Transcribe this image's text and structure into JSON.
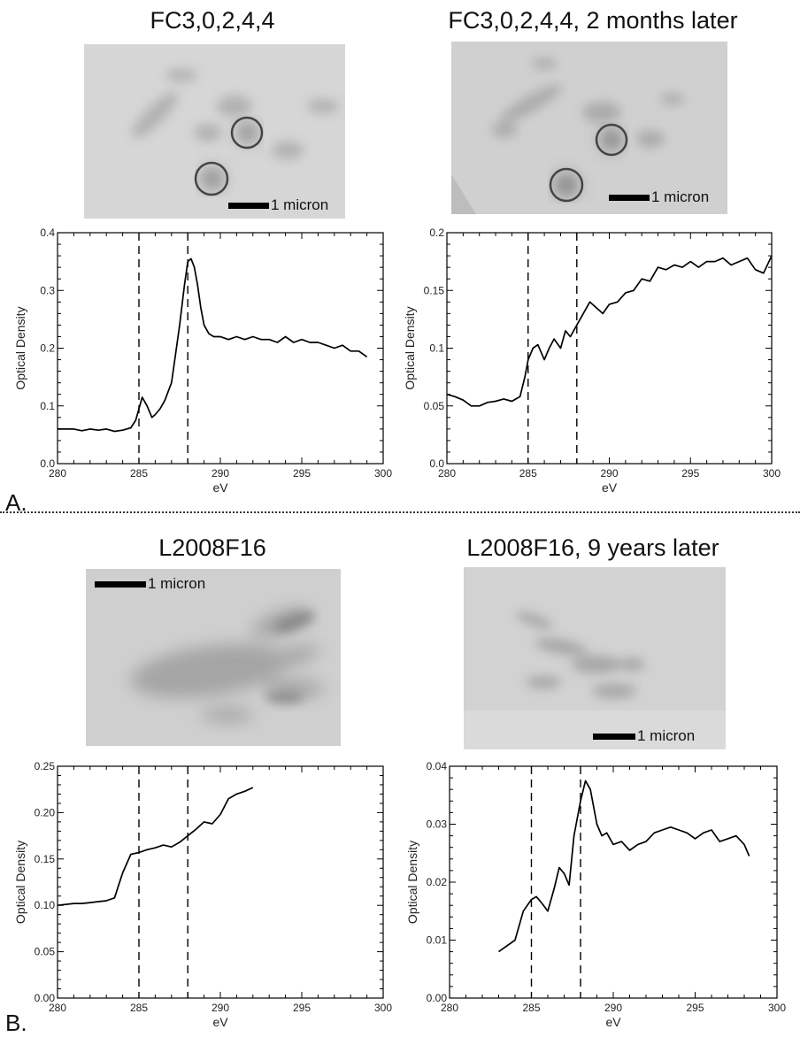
{
  "figure": {
    "section_labels": [
      "A.",
      "B."
    ],
    "scale_label": "1 micron"
  },
  "panels": [
    {
      "title": "FC3,0,2,4,4"
    },
    {
      "title": "FC3,0,2,4,4,  2 months later"
    },
    {
      "title": "L2008F16"
    },
    {
      "title": "L2008F16,  9 years later"
    }
  ],
  "chart_data": [
    {
      "type": "line",
      "title": "FC3,0,2,4,4",
      "xlabel": "eV",
      "ylabel": "Optical Density",
      "xlim": [
        280,
        300
      ],
      "ylim": [
        0,
        0.4
      ],
      "xticks": [
        "280",
        "285",
        "290",
        "295",
        "300"
      ],
      "yticks": [
        "0.0",
        "0.1",
        "0.2",
        "0.3",
        "0.4"
      ],
      "yticks_values": [
        0,
        0.1,
        0.2,
        0.3,
        0.4
      ],
      "vlines": [
        285,
        288
      ],
      "grid": false,
      "series": [
        {
          "x": [
            280,
            281,
            281.5,
            282,
            282.5,
            283,
            283.5,
            284,
            284.5,
            284.8,
            285,
            285.2,
            285.5,
            285.8,
            286,
            286.3,
            286.6,
            287,
            287.2,
            287.5,
            287.8,
            288,
            288.2,
            288.4,
            288.6,
            288.8,
            289,
            289.3,
            289.6,
            290,
            290.5,
            291,
            291.5,
            292,
            292.5,
            293,
            293.5,
            294,
            294.5,
            295,
            295.5,
            296,
            296.5,
            297,
            297.5,
            298,
            298.5,
            299
          ],
          "y": [
            0.06,
            0.06,
            0.057,
            0.06,
            0.058,
            0.06,
            0.056,
            0.058,
            0.062,
            0.075,
            0.095,
            0.115,
            0.1,
            0.08,
            0.085,
            0.095,
            0.11,
            0.14,
            0.18,
            0.24,
            0.31,
            0.35,
            0.355,
            0.34,
            0.31,
            0.27,
            0.24,
            0.225,
            0.22,
            0.22,
            0.215,
            0.22,
            0.215,
            0.22,
            0.215,
            0.215,
            0.21,
            0.22,
            0.21,
            0.215,
            0.21,
            0.21,
            0.205,
            0.2,
            0.205,
            0.195,
            0.195,
            0.185
          ]
        }
      ]
    },
    {
      "type": "line",
      "title": "FC3,0,2,4,4,  2 months later",
      "xlabel": "eV",
      "ylabel": "Optical Density",
      "xlim": [
        280,
        300
      ],
      "ylim": [
        0,
        0.2
      ],
      "xticks": [
        "280",
        "285",
        "290",
        "295",
        "300"
      ],
      "yticks": [
        "0.0",
        "0.05",
        "0.1",
        "0.15",
        "0.2"
      ],
      "yticks_values": [
        0,
        0.05,
        0.1,
        0.15,
        0.2
      ],
      "vlines": [
        285,
        288
      ],
      "grid": false,
      "series": [
        {
          "x": [
            280,
            280.5,
            281,
            281.5,
            282,
            282.5,
            283,
            283.5,
            284,
            284.5,
            284.8,
            285,
            285.3,
            285.6,
            286,
            286.3,
            286.6,
            287,
            287.3,
            287.6,
            288,
            288.4,
            288.8,
            289.2,
            289.6,
            290,
            290.5,
            291,
            291.5,
            292,
            292.5,
            293,
            293.5,
            294,
            294.5,
            295,
            295.5,
            296,
            296.5,
            297,
            297.5,
            298,
            298.5,
            299,
            299.5,
            300
          ],
          "y": [
            0.06,
            0.058,
            0.055,
            0.05,
            0.05,
            0.053,
            0.054,
            0.056,
            0.054,
            0.058,
            0.075,
            0.09,
            0.1,
            0.103,
            0.09,
            0.1,
            0.108,
            0.1,
            0.115,
            0.11,
            0.12,
            0.13,
            0.14,
            0.135,
            0.13,
            0.138,
            0.14,
            0.148,
            0.15,
            0.16,
            0.158,
            0.17,
            0.168,
            0.172,
            0.17,
            0.175,
            0.17,
            0.175,
            0.175,
            0.178,
            0.172,
            0.175,
            0.178,
            0.168,
            0.165,
            0.18
          ]
        }
      ]
    },
    {
      "type": "line",
      "title": "L2008F16",
      "xlabel": "eV",
      "ylabel": "Optical Density",
      "xlim": [
        280,
        300
      ],
      "ylim": [
        0,
        0.25
      ],
      "xticks": [
        "280",
        "285",
        "290",
        "295",
        "300"
      ],
      "yticks": [
        "0.00",
        "0.05",
        "0.10",
        "0.15",
        "0.20",
        "0.25"
      ],
      "yticks_values": [
        0,
        0.05,
        0.1,
        0.15,
        0.2,
        0.25
      ],
      "vlines": [
        285,
        288
      ],
      "grid": false,
      "series": [
        {
          "x": [
            280,
            281,
            281.5,
            282,
            282.5,
            283,
            283.5,
            284,
            284.5,
            285,
            285.5,
            286,
            286.5,
            287,
            287.5,
            288,
            288.5,
            289,
            289.5,
            290,
            290.5,
            291,
            291.5,
            292
          ],
          "y": [
            0.1,
            0.102,
            0.102,
            0.103,
            0.104,
            0.105,
            0.108,
            0.135,
            0.155,
            0.157,
            0.16,
            0.162,
            0.165,
            0.163,
            0.168,
            0.175,
            0.182,
            0.19,
            0.188,
            0.198,
            0.215,
            0.22,
            0.223,
            0.227
          ]
        }
      ]
    },
    {
      "type": "line",
      "title": "L2008F16,  9 years later",
      "xlabel": "eV",
      "ylabel": "Optical Density",
      "xlim": [
        280,
        300
      ],
      "ylim": [
        0,
        0.04
      ],
      "xticks": [
        "280",
        "285",
        "290",
        "295",
        "300"
      ],
      "yticks": [
        "0.00",
        "0.01",
        "0.02",
        "0.03",
        "0.04"
      ],
      "yticks_values": [
        0,
        0.01,
        0.02,
        0.03,
        0.04
      ],
      "vlines": [
        285,
        288
      ],
      "grid": false,
      "series": [
        {
          "x": [
            283,
            284,
            284.5,
            285,
            285.3,
            285.6,
            286,
            286.4,
            286.7,
            287,
            287.3,
            287.6,
            288,
            288.3,
            288.6,
            289,
            289.3,
            289.6,
            290,
            290.5,
            291,
            291.5,
            292,
            292.5,
            293,
            293.5,
            294,
            294.5,
            295,
            295.5,
            296,
            296.5,
            297,
            297.5,
            298,
            298.3
          ],
          "y": [
            0.008,
            0.01,
            0.015,
            0.017,
            0.0175,
            0.0165,
            0.015,
            0.019,
            0.0225,
            0.0215,
            0.0195,
            0.028,
            0.034,
            0.0375,
            0.036,
            0.03,
            0.028,
            0.0285,
            0.0265,
            0.027,
            0.0255,
            0.0265,
            0.027,
            0.0285,
            0.029,
            0.0295,
            0.029,
            0.0285,
            0.0275,
            0.0285,
            0.029,
            0.027,
            0.0275,
            0.028,
            0.0265,
            0.0245
          ]
        }
      ]
    }
  ]
}
